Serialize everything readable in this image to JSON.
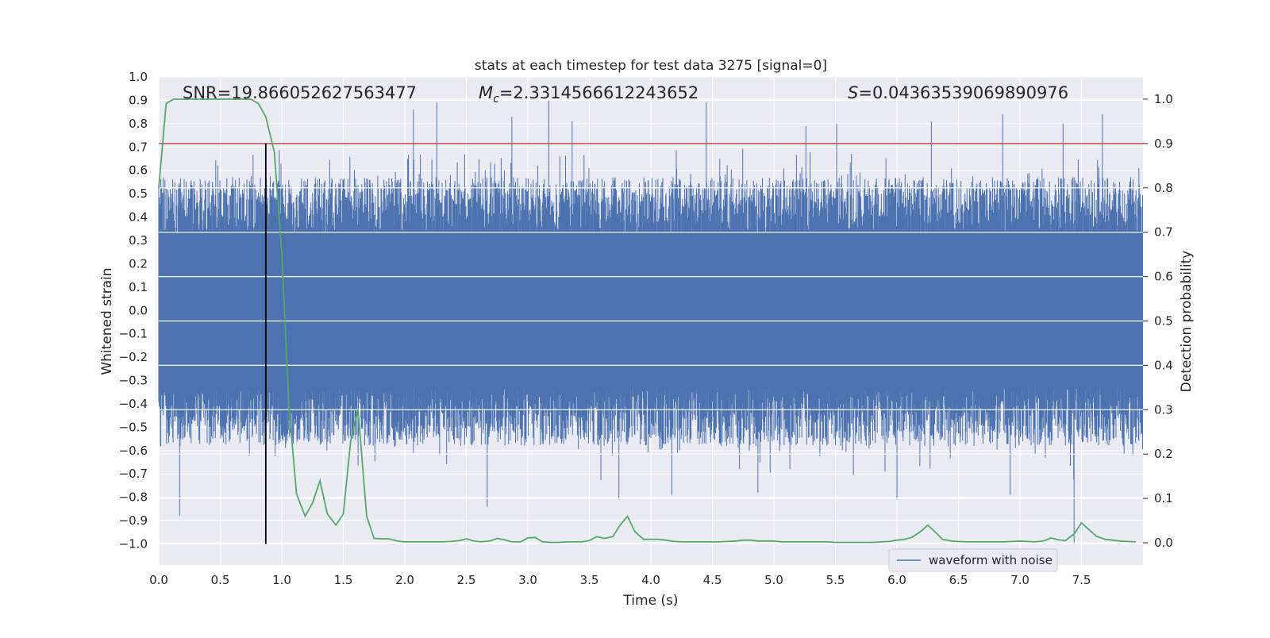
{
  "chart_data": {
    "type": "line",
    "title": "stats at each timestep for test data 3275 [signal=0]",
    "xlabel": "Time (s)",
    "ylabel_left": "Whitened strain",
    "ylabel_right": "Detection probability",
    "xlim": [
      0.0,
      8.0
    ],
    "ylim_left": [
      -1.09,
      1.0
    ],
    "ylim_right": [
      -0.05,
      1.05
    ],
    "x_ticks": [
      "0.0",
      "0.5",
      "1.0",
      "1.5",
      "2.0",
      "2.5",
      "3.0",
      "3.5",
      "4.0",
      "4.5",
      "5.0",
      "5.5",
      "6.0",
      "6.5",
      "7.0",
      "7.5"
    ],
    "y_left_ticks": [
      "1.0",
      "0.9",
      "0.8",
      "0.7",
      "0.6",
      "0.5",
      "0.4",
      "0.3",
      "0.2",
      "0.1",
      "0.0",
      "−0.1",
      "−0.2",
      "−0.3",
      "−0.4",
      "−0.5",
      "−0.6",
      "−0.7",
      "−0.8",
      "−0.9",
      "−1.0"
    ],
    "y_right_ticks": [
      "1.0",
      "0.9",
      "0.8",
      "0.7",
      "0.6",
      "0.5",
      "0.4",
      "0.3",
      "0.2",
      "0.1",
      "0.0"
    ],
    "grid": true,
    "annotations": {
      "snr": "SNR=19.866052627563477",
      "mc_symbol": "M",
      "mc_sub": "c",
      "mc_value": "=2.3314566612243652",
      "s_symbol": "S",
      "s_value": "=0.04363539069890976"
    },
    "threshold_line": {
      "axis": "right",
      "y": 0.9,
      "color": "#c44e52"
    },
    "event_marker": {
      "x": 0.87,
      "y_range": [
        -1.0,
        0.9
      ],
      "color": "#000000"
    },
    "series": [
      {
        "name": "waveform with noise",
        "axis": "left",
        "color": "#4c72b0",
        "style": "dense noise, approx. range -1.0 to 0.9 about 0.0",
        "peaks": [
          {
            "x": 2.07,
            "y": 0.86
          },
          {
            "x": 2.26,
            "y": 0.89
          },
          {
            "x": 2.87,
            "y": 0.83
          },
          {
            "x": 3.17,
            "y": 0.9
          },
          {
            "x": 3.36,
            "y": 0.81
          },
          {
            "x": 4.45,
            "y": 0.89
          },
          {
            "x": 5.26,
            "y": 0.79
          },
          {
            "x": 5.51,
            "y": 0.8
          },
          {
            "x": 6.28,
            "y": 0.81
          },
          {
            "x": 6.86,
            "y": 0.84
          },
          {
            "x": 7.67,
            "y": 0.84
          },
          {
            "x": 7.35,
            "y": 0.8
          }
        ],
        "troughs": [
          {
            "x": 0.17,
            "y": -0.88
          },
          {
            "x": 2.67,
            "y": -0.84
          },
          {
            "x": 3.74,
            "y": -0.81
          },
          {
            "x": 4.17,
            "y": -0.79
          },
          {
            "x": 4.87,
            "y": -0.78
          },
          {
            "x": 6.0,
            "y": -0.81
          },
          {
            "x": 6.92,
            "y": -0.79
          },
          {
            "x": 7.44,
            "y": -1.0
          }
        ]
      },
      {
        "name": "",
        "axis": "right",
        "color": "#55a868",
        "x": [
          0.0,
          0.06,
          0.12,
          0.19,
          0.25,
          0.31,
          0.37,
          0.44,
          0.5,
          0.56,
          0.62,
          0.69,
          0.75,
          0.81,
          0.87,
          0.94,
          1.0,
          1.06,
          1.12,
          1.19,
          1.25,
          1.31,
          1.37,
          1.44,
          1.5,
          1.56,
          1.62,
          1.69,
          1.75,
          1.81,
          1.87,
          1.94,
          2.0,
          2.06,
          2.12,
          2.19,
          2.25,
          2.31,
          2.37,
          2.44,
          2.5,
          2.56,
          2.62,
          2.69,
          2.75,
          2.81,
          2.87,
          2.94,
          3.0,
          3.06,
          3.12,
          3.19,
          3.25,
          3.31,
          3.37,
          3.44,
          3.5,
          3.56,
          3.62,
          3.69,
          3.75,
          3.81,
          3.87,
          3.94,
          4.0,
          4.06,
          4.12,
          4.19,
          4.25,
          4.31,
          4.37,
          4.44,
          4.5,
          4.56,
          4.62,
          4.69,
          4.75,
          4.81,
          4.87,
          4.94,
          5.0,
          5.06,
          5.12,
          5.19,
          5.25,
          5.31,
          5.37,
          5.44,
          5.5,
          5.56,
          5.62,
          5.69,
          5.75,
          5.81,
          5.87,
          5.94,
          6.0,
          6.06,
          6.12,
          6.19,
          6.25,
          6.31,
          6.37,
          6.44,
          6.5,
          6.56,
          6.62,
          6.69,
          6.75,
          6.81,
          6.87,
          6.94,
          7.0,
          7.06,
          7.12,
          7.19,
          7.25,
          7.31,
          7.37,
          7.44,
          7.5,
          7.56,
          7.62,
          7.69,
          7.75,
          7.81,
          7.87,
          7.94
        ],
        "values": [
          0.8,
          0.99,
          1.0,
          1.0,
          1.0,
          1.0,
          1.0,
          1.0,
          1.0,
          1.0,
          1.0,
          1.0,
          1.0,
          0.99,
          0.96,
          0.88,
          0.65,
          0.3,
          0.11,
          0.06,
          0.09,
          0.14,
          0.065,
          0.04,
          0.065,
          0.23,
          0.3,
          0.06,
          0.01,
          0.009,
          0.009,
          0.004,
          0.002,
          0.002,
          0.002,
          0.002,
          0.002,
          0.002,
          0.003,
          0.005,
          0.009,
          0.004,
          0.002,
          0.004,
          0.01,
          0.007,
          0.002,
          0.002,
          0.011,
          0.012,
          0.002,
          0.001,
          0.001,
          0.002,
          0.002,
          0.002,
          0.005,
          0.014,
          0.01,
          0.014,
          0.04,
          0.06,
          0.025,
          0.008,
          0.008,
          0.008,
          0.006,
          0.003,
          0.002,
          0.002,
          0.002,
          0.002,
          0.002,
          0.002,
          0.003,
          0.004,
          0.006,
          0.006,
          0.004,
          0.004,
          0.004,
          0.002,
          0.002,
          0.002,
          0.002,
          0.002,
          0.002,
          0.002,
          0.001,
          0.001,
          0.001,
          0.001,
          0.001,
          0.001,
          0.002,
          0.003,
          0.006,
          0.008,
          0.012,
          0.025,
          0.04,
          0.025,
          0.008,
          0.004,
          0.003,
          0.002,
          0.002,
          0.002,
          0.002,
          0.002,
          0.002,
          0.003,
          0.004,
          0.003,
          0.002,
          0.004,
          0.011,
          0.007,
          0.005,
          0.02,
          0.045,
          0.03,
          0.015,
          0.008,
          0.006,
          0.004,
          0.003,
          0.002
        ]
      }
    ],
    "legend": {
      "placement": "lower-right",
      "entries": [
        "waveform with noise"
      ]
    }
  }
}
